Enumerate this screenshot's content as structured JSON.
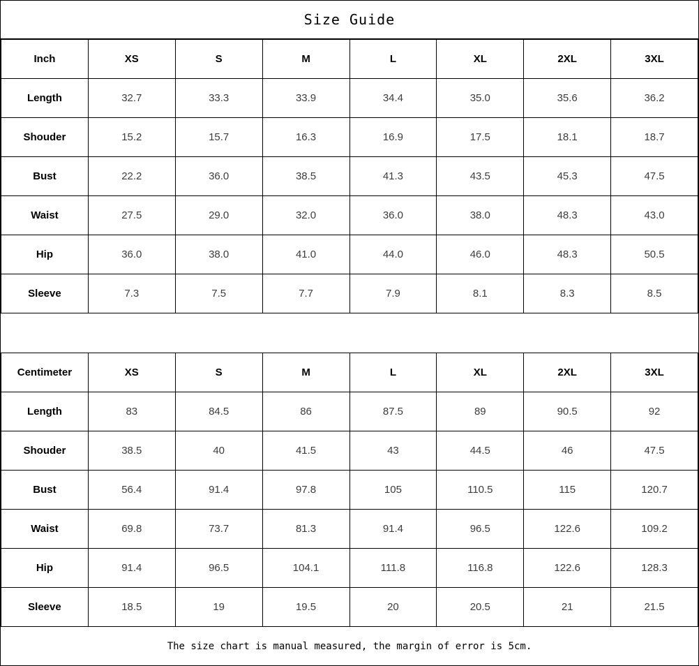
{
  "title": "Size Guide",
  "footer": "The size chart is manual measured, the margin of error is 5cm.",
  "colors": {
    "border": "#000000",
    "background": "#ffffff",
    "header_text": "#000000",
    "value_text": "#3d3d3d"
  },
  "chart_data": [
    {
      "type": "table",
      "title": "Size Guide",
      "unit": "Inch",
      "header": [
        "Inch",
        "XS",
        "S",
        "M",
        "L",
        "XL",
        "2XL",
        "3XL"
      ],
      "rows": [
        [
          "Length",
          "32.7",
          "33.3",
          "33.9",
          "34.4",
          "35.0",
          "35.6",
          "36.2"
        ],
        [
          "Shouder",
          "15.2",
          "15.7",
          "16.3",
          "16.9",
          "17.5",
          "18.1",
          "18.7"
        ],
        [
          "Bust",
          "22.2",
          "36.0",
          "38.5",
          "41.3",
          "43.5",
          "45.3",
          "47.5"
        ],
        [
          "Waist",
          "27.5",
          "29.0",
          "32.0",
          "36.0",
          "38.0",
          "48.3",
          "43.0"
        ],
        [
          "Hip",
          "36.0",
          "38.0",
          "41.0",
          "44.0",
          "46.0",
          "48.3",
          "50.5"
        ],
        [
          "Sleeve",
          "7.3",
          "7.5",
          "7.7",
          "7.9",
          "8.1",
          "8.3",
          "8.5"
        ]
      ]
    },
    {
      "type": "table",
      "title": "Size Guide",
      "unit": "Centimeter",
      "header": [
        "Centimeter",
        "XS",
        "S",
        "M",
        "L",
        "XL",
        "2XL",
        "3XL"
      ],
      "rows": [
        [
          "Length",
          "83",
          "84.5",
          "86",
          "87.5",
          "89",
          "90.5",
          "92"
        ],
        [
          "Shouder",
          "38.5",
          "40",
          "41.5",
          "43",
          "44.5",
          "46",
          "47.5"
        ],
        [
          "Bust",
          "56.4",
          "91.4",
          "97.8",
          "105",
          "110.5",
          "115",
          "120.7"
        ],
        [
          "Waist",
          "69.8",
          "73.7",
          "81.3",
          "91.4",
          "96.5",
          "122.6",
          "109.2"
        ],
        [
          "Hip",
          "91.4",
          "96.5",
          "104.1",
          "111.8",
          "116.8",
          "122.6",
          "128.3"
        ],
        [
          "Sleeve",
          "18.5",
          "19",
          "19.5",
          "20",
          "20.5",
          "21",
          "21.5"
        ]
      ]
    }
  ]
}
